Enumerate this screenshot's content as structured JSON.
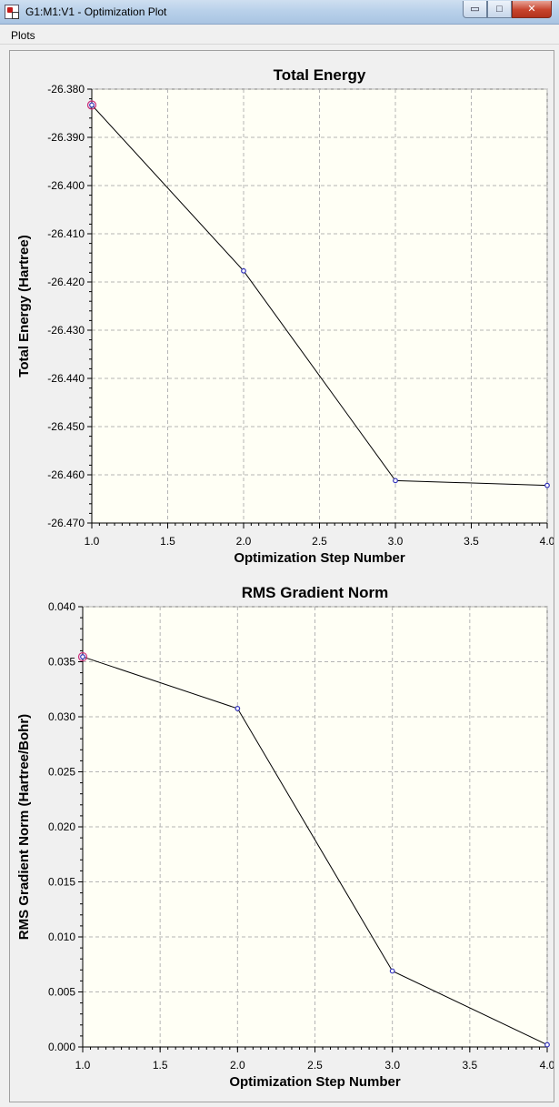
{
  "window": {
    "title": "G1:M1:V1 - Optimization Plot",
    "min_glyph": "▭",
    "max_glyph": "□",
    "close_glyph": "✕"
  },
  "menu": {
    "items": [
      "Plots"
    ]
  },
  "colors": {
    "plot_bg": "#fffff5",
    "line": "#000000",
    "marker": "#3333bb",
    "highlight": "#cc2b7a",
    "grid": "#b4b4b4"
  },
  "chart_data": [
    {
      "type": "line",
      "title": "Total Energy",
      "xlabel": "Optimization Step Number",
      "ylabel": "Total Energy (Hartree)",
      "x": [
        1.0,
        2.0,
        3.0,
        4.0
      ],
      "series": [
        {
          "values": [
            -26.3833,
            -26.4177,
            -26.4612,
            -26.4622
          ]
        }
      ],
      "xlim": [
        1.0,
        4.0
      ],
      "ylim": [
        -26.47,
        -26.38
      ],
      "xticks": [
        "1.0",
        "1.5",
        "2.0",
        "2.5",
        "3.0",
        "3.5",
        "4.0"
      ],
      "yticks": [
        "-26.380",
        "-26.390",
        "-26.400",
        "-26.410",
        "-26.420",
        "-26.430",
        "-26.440",
        "-26.450",
        "-26.460",
        "-26.470"
      ],
      "highlighted_point": 0,
      "grid": true
    },
    {
      "type": "line",
      "title": "RMS Gradient Norm",
      "xlabel": "Optimization Step Number",
      "ylabel": "RMS Gradient Norm (Hartree/Bohr)",
      "x": [
        1.0,
        2.0,
        3.0,
        4.0
      ],
      "series": [
        {
          "values": [
            0.03545,
            0.03075,
            0.0069,
            0.0002
          ]
        }
      ],
      "xlim": [
        1.0,
        4.0
      ],
      "ylim": [
        0.0,
        0.04
      ],
      "xticks": [
        "1.0",
        "1.5",
        "2.0",
        "2.5",
        "3.0",
        "3.5",
        "4.0"
      ],
      "yticks": [
        "0.000",
        "0.005",
        "0.010",
        "0.015",
        "0.020",
        "0.025",
        "0.030",
        "0.035",
        "0.040"
      ],
      "highlighted_point": 0,
      "grid": true
    }
  ]
}
